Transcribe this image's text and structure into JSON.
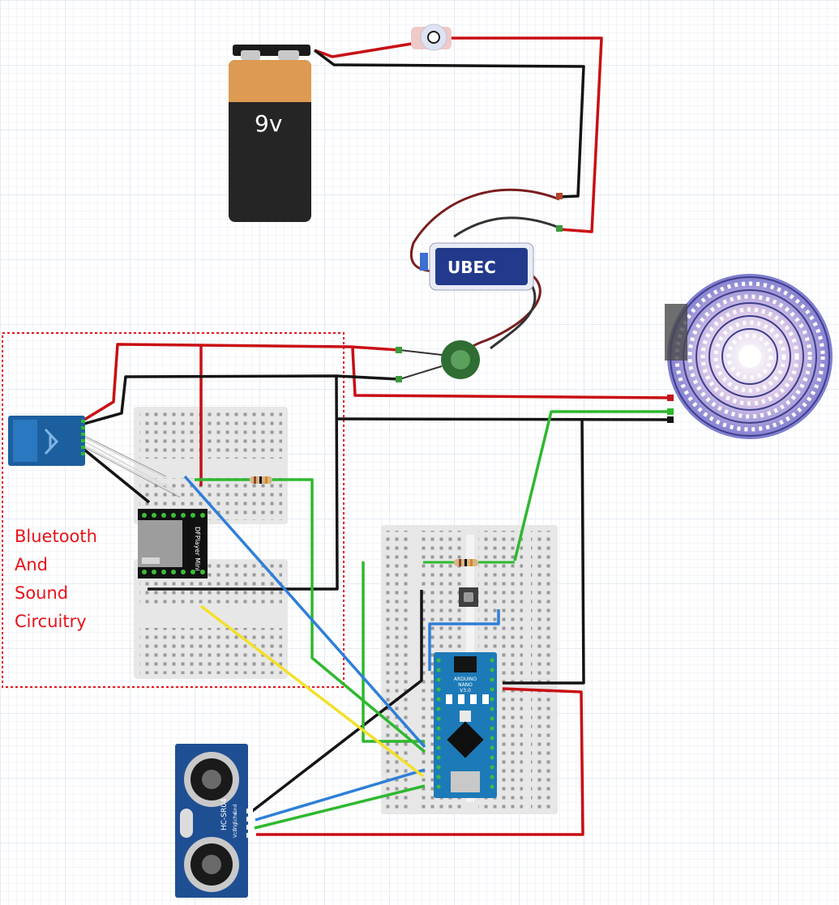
{
  "diagram": {
    "battery_label": "9v",
    "section_label_lines": [
      "Bluetooth",
      "And",
      "Sound",
      "Circuitry"
    ],
    "ubec_label": "UBEC",
    "mp3_module_label": "DFPlayer Mini",
    "nano_label_lines": [
      "ARDUINO",
      "NANO",
      "V3.0"
    ],
    "sensor_label": "HC-SR04",
    "sensor_pins": [
      "Gnd",
      "Echo",
      "Trig",
      "Vcc"
    ],
    "wire_colors": {
      "power": "#c80f14",
      "ground": "#141414",
      "data_green": "#2fb82f",
      "data_blue": "#2f7fd8",
      "data_yellow": "#f2e02a",
      "bluetooth_lines": "#dcdcdc"
    },
    "section_border_color": "#e8121a"
  }
}
